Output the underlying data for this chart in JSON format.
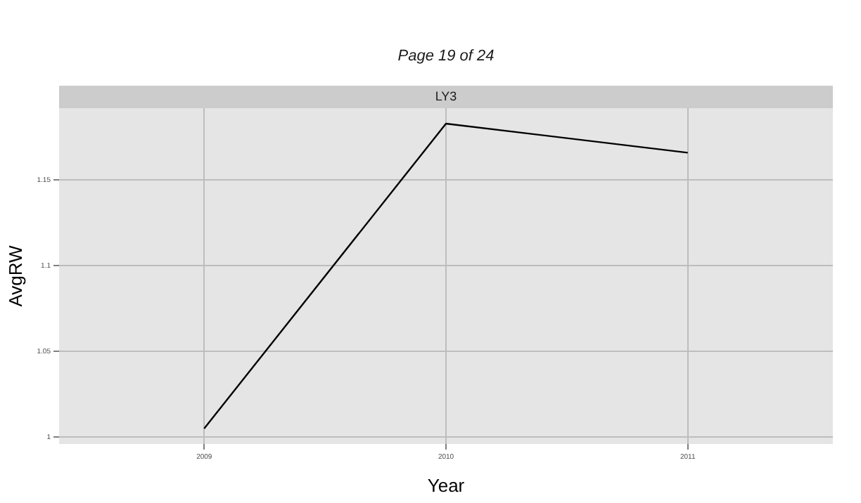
{
  "chart_data": {
    "type": "line",
    "title": "Page 19 of 24",
    "subtitle": "LY3",
    "xlabel": "Year",
    "ylabel": "AvgRW",
    "x": [
      2009,
      2010,
      2011
    ],
    "series": [
      {
        "color": "#000000",
        "values": [
          1.005,
          1.183,
          1.166
        ]
      }
    ],
    "xlim": [
      2008.4,
      2011.6
    ],
    "xticks": [
      2009,
      2010,
      2011
    ],
    "ylim": [
      0.996,
      1.192
    ],
    "yticks": [
      1.0,
      1.05,
      1.1,
      1.15
    ],
    "grid": true,
    "legend": false,
    "marker": "none",
    "line_style": "solid"
  }
}
